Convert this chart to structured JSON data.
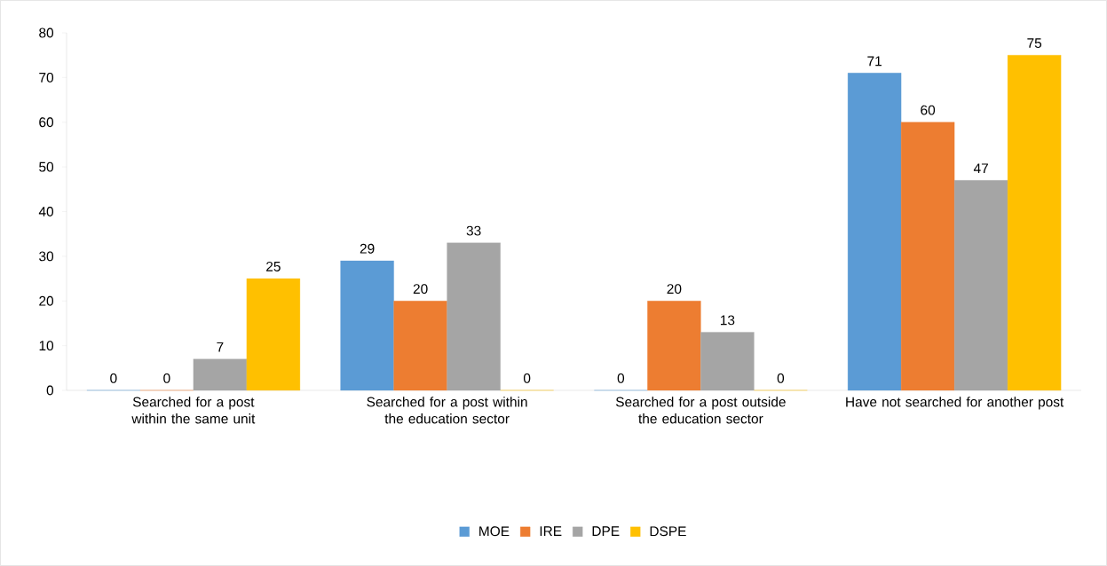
{
  "chart_data": {
    "type": "bar",
    "categories": [
      "Searched for a post within the same unit",
      "Searched for a post within the education sector",
      "Searched for a post outside the education sector",
      "Have not searched for another post"
    ],
    "series": [
      {
        "name": "MOE",
        "color": "#5b9bd5",
        "values": [
          0,
          29,
          0,
          71
        ]
      },
      {
        "name": "IRE",
        "color": "#ed7d31",
        "values": [
          0,
          20,
          20,
          60
        ]
      },
      {
        "name": "DPE",
        "color": "#a5a5a5",
        "values": [
          7,
          33,
          13,
          47
        ]
      },
      {
        "name": "DSPE",
        "color": "#ffc000",
        "values": [
          25,
          0,
          0,
          75
        ]
      }
    ],
    "ylim": [
      0,
      80
    ],
    "yticks": [
      0,
      10,
      20,
      30,
      40,
      50,
      60,
      70,
      80
    ],
    "data_labels": true,
    "legend": "bottom",
    "grid": false
  }
}
